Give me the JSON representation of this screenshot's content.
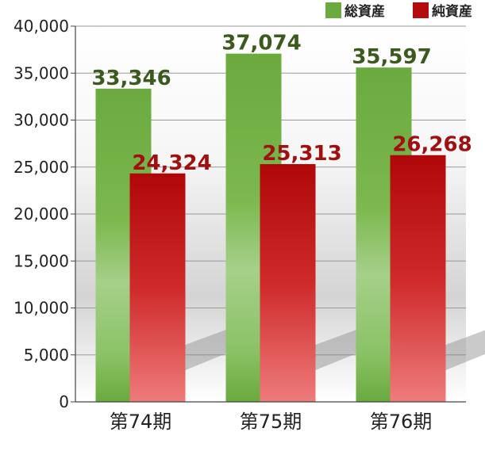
{
  "chart_data": {
    "type": "bar",
    "categories": [
      "第74期",
      "第75期",
      "第76期"
    ],
    "series": [
      {
        "name": "総資産",
        "values": [
          33346,
          37074,
          35597
        ],
        "labels": [
          "33,346",
          "37,074",
          "35,597"
        ],
        "color": "#6aaa3e",
        "label_color": "#3d5a1e"
      },
      {
        "name": "純資産",
        "values": [
          24324,
          25313,
          26268
        ],
        "labels": [
          "24,324",
          "25,313",
          "26,268"
        ],
        "color": "#b40c0c",
        "label_color": "#a01010"
      }
    ],
    "ylim": [
      0,
      40000
    ],
    "yticks": [
      "0",
      "5,000",
      "10,000",
      "15,000",
      "20,000",
      "25,000",
      "30,000",
      "35,000",
      "40,000"
    ],
    "grid": true,
    "legend_position": "top-right"
  }
}
